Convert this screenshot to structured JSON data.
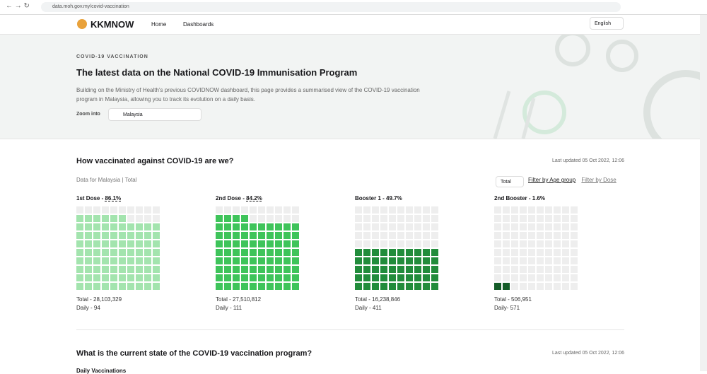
{
  "browser": {
    "url": "data.moh.gov.my/covid-vaccination"
  },
  "nav": {
    "brand": "KKMNOW",
    "links": [
      "Home",
      "Dashboards"
    ],
    "language": "English"
  },
  "hero": {
    "eyebrow": "COVID-19 VACCINATION",
    "title": "The latest data on the National COVID-19 Immunisation Program",
    "description": "Building on the Ministry of Health's previous COVIDNOW dashboard, this page provides a summarised view of the COVID-19 vaccination program in Malaysia, allowing you to track its evolution on a daily basis.",
    "zoom_label": "Zoom into",
    "zoom_value": "Malaysia"
  },
  "section1": {
    "title": "How vaccinated against COVID-19 are we?",
    "updated": "Last updated 05 Oct 2022, 12:06",
    "subtitle": "Data for Malaysia | Total",
    "filter_select": "Total",
    "filter_tabs": [
      "Filter by Age group",
      "Filter by Dose"
    ],
    "waffles": [
      {
        "heading": "1st Dose - ",
        "percent": 86.1,
        "percent_label": "86.1%",
        "underlined": true,
        "color": "#a3e4ae",
        "total": "Total - 28,103,329",
        "daily": "Daily - 94"
      },
      {
        "heading": "2nd Dose - ",
        "percent": 84.2,
        "percent_label": "84.2%",
        "underlined": true,
        "color": "#3ec45a",
        "total": "Total - 27,510,812",
        "daily": "Daily - 111"
      },
      {
        "heading": "Booster 1 - ",
        "percent": 49.7,
        "percent_label": "49.7%",
        "underlined": false,
        "color": "#218c3b",
        "total": "Total - 16,238,846",
        "daily": "Daily - 411"
      },
      {
        "heading": "2nd Booster - ",
        "percent": 1.6,
        "percent_label": "1.6%",
        "underlined": false,
        "color": "#145c28",
        "total": "Total - 506,951",
        "daily": "Daily- 571"
      }
    ]
  },
  "section2": {
    "title": "What is the current state of the COVID-19 vaccination program?",
    "updated": "Last updated 05 Oct 2022, 12:06",
    "subtitle": "Daily Vaccinations"
  }
}
